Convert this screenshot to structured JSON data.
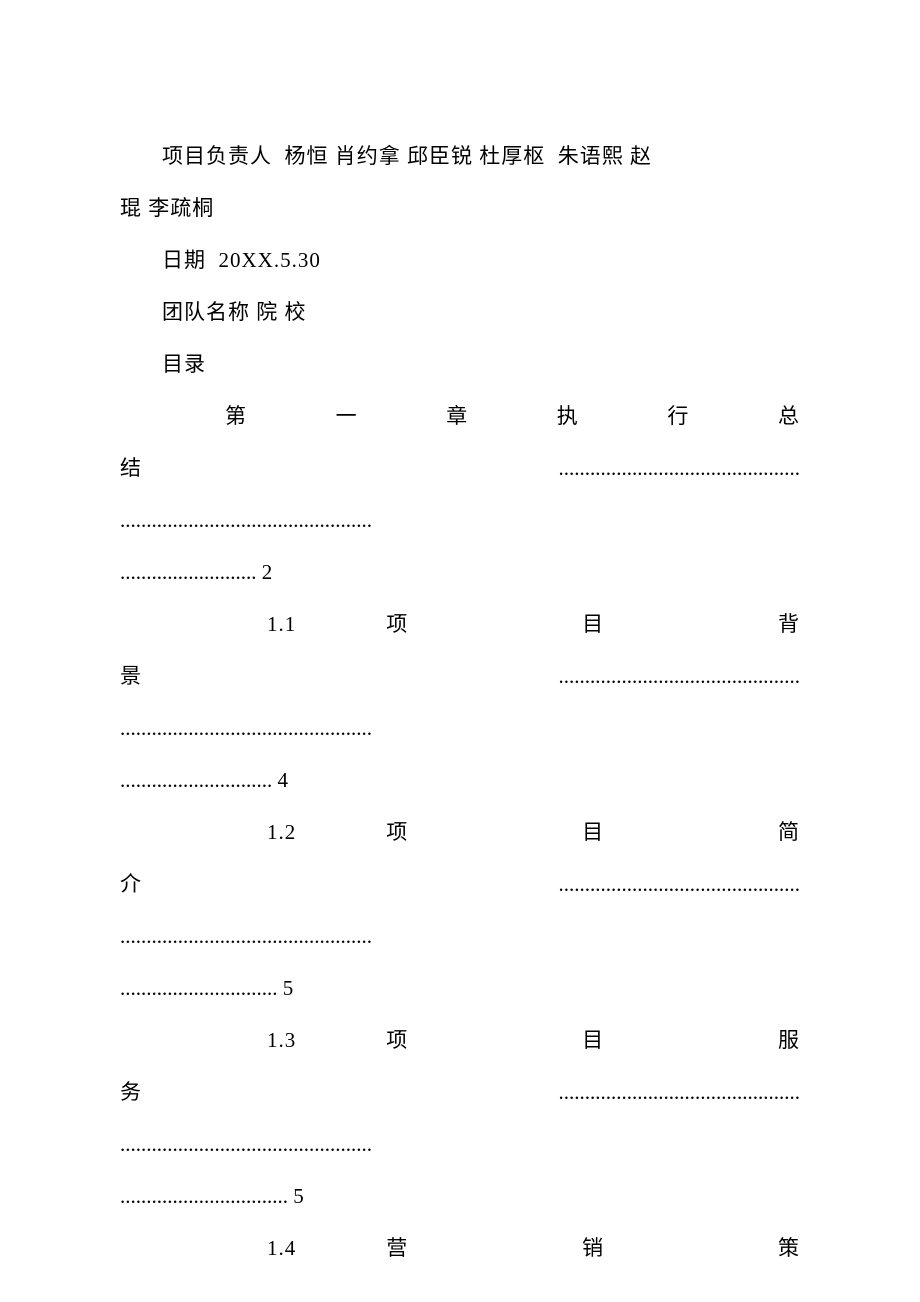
{
  "header": {
    "responsible_label": "项目负责人",
    "responsible_names": "杨恒 肖约拿 邱臣锐 杜厚枢  朱语熙 赵琨 李疏桐",
    "date_label": "日期",
    "date_value": "20XX.5.30",
    "team_label": "团队名称",
    "team_value": "院 校",
    "toc_label": "目录"
  },
  "toc": {
    "chapter1": {
      "line1": "第 一 章   执 行 总",
      "line2": "结..............................................",
      "line3": "................................................",
      "line4": ".......................... 2"
    },
    "section11": {
      "line1": "1.1     项 目 背",
      "line2": "景..............................................",
      "line3": "................................................",
      "line4": "............................. 4"
    },
    "section12": {
      "line1": "1.2     项 目 简",
      "line2": "介..............................................",
      "line3": "................................................",
      "line4": ".............................. 5"
    },
    "section13": {
      "line1": "1.3     项 目 服",
      "line2": "务..............................................",
      "line3": "................................................",
      "line4": "................................ 5"
    },
    "section14": {
      "line1": "1.4     营 销 策"
    }
  },
  "style": {
    "font_size": 21,
    "text_color": "#000000",
    "background_color": "#ffffff",
    "line_height": 2.0
  }
}
